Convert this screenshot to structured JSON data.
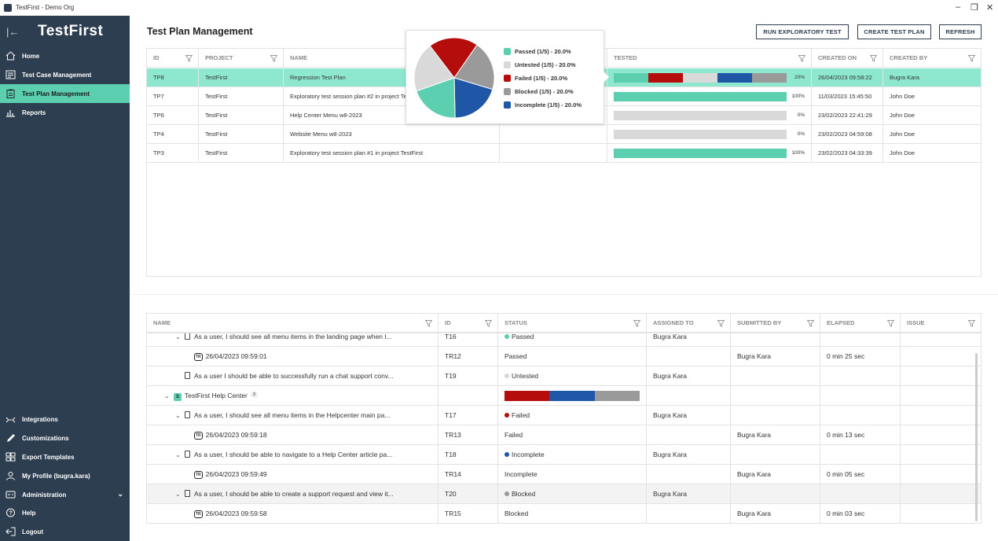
{
  "window": {
    "title": "TestFirst - Demo Org"
  },
  "sidebar": {
    "logo": "TestFirst",
    "items": [
      {
        "label": "Home",
        "icon": "home-icon"
      },
      {
        "label": "Test Case Management",
        "icon": "test-case-icon"
      },
      {
        "label": "Test Plan Management",
        "icon": "clipboard-icon"
      },
      {
        "label": "Reports",
        "icon": "chart-icon"
      }
    ],
    "bottom_items": [
      {
        "label": "Integrations",
        "icon": "integrations-icon"
      },
      {
        "label": "Customizations",
        "icon": "pen-icon"
      },
      {
        "label": "Export Templates",
        "icon": "template-icon"
      },
      {
        "label": "My Profile (bugra.kara)",
        "icon": "user-icon"
      },
      {
        "label": "Administration",
        "icon": "admin-icon"
      },
      {
        "label": "Help",
        "icon": "help-icon"
      },
      {
        "label": "Logout",
        "icon": "logout-icon"
      }
    ]
  },
  "page": {
    "title": "Test Plan Management"
  },
  "toolbar": {
    "run_exploratory": "RUN EXPLORATORY TEST",
    "create_plan": "CREATE TEST PLAN",
    "refresh": "REFRESH"
  },
  "plans_table": {
    "headers": [
      "ID",
      "PROJECT",
      "NAME",
      "",
      "TESTED",
      "CREATED ON",
      "CREATED BY"
    ],
    "rows": [
      {
        "id": "TP8",
        "project": "TestFirst",
        "name": "Regression Test Plan",
        "pct": "20%",
        "created_on": "26/04/2023 09:58:22",
        "created_by": "Bugra Kara",
        "selected": true
      },
      {
        "id": "TP7",
        "project": "TestFirst",
        "name": "Exploratory test session plan #2 in project TestFirst",
        "pct": "100%",
        "created_on": "11/03/2023 15:45:50",
        "created_by": "John Doe"
      },
      {
        "id": "TP6",
        "project": "TestFirst",
        "name": "Help Center Menu w8-2023",
        "pct": "0%",
        "created_on": "23/02/2023 22:41:29",
        "created_by": "John Doe"
      },
      {
        "id": "TP4",
        "project": "TestFirst",
        "name": "Website Menu w8-2023",
        "pct": "0%",
        "created_on": "23/02/2023 04:59:08",
        "created_by": "John Doe"
      },
      {
        "id": "TP3",
        "project": "TestFirst",
        "name": "Exploratory test session plan #1 in project TestFirst",
        "pct": "100%",
        "created_on": "23/02/2023 04:33:39",
        "created_by": "John Doe"
      }
    ]
  },
  "colors": {
    "passed": "#5ccfb1",
    "untested": "#d9d9d9",
    "failed": "#b50c0c",
    "blocked": "#9a9a9a",
    "incomplete": "#1f56a6",
    "sidebar": "#2d3e50",
    "active": "#5ccfb1"
  },
  "popup": {
    "legend": [
      {
        "label": "Passed (1/5) - 20.0%",
        "color": "#5ccfb1"
      },
      {
        "label": "Untested (1/5) - 20.0%",
        "color": "#d9d9d9"
      },
      {
        "label": "Failed (1/5) - 20.0%",
        "color": "#b50c0c"
      },
      {
        "label": "Blocked (1/5) - 20.0%",
        "color": "#9a9a9a"
      },
      {
        "label": "Incomplete (1/5) - 20.0%",
        "color": "#1f56a6"
      }
    ]
  },
  "runs_table": {
    "headers": [
      "NAME",
      "ID",
      "STATUS",
      "ASSIGNED TO",
      "SUBMITTED BY",
      "ELAPSED",
      "ISSUE"
    ],
    "rows": [
      {
        "kind": "case",
        "name": "As a user, I should see all menu items in the landing page when l...",
        "id": "T16",
        "status": "Passed",
        "status_color": "#5ccfb1",
        "assigned": "Bugra Kara",
        "submitted": "",
        "elapsed": ""
      },
      {
        "kind": "run",
        "name": "26/04/2023 09:59:01",
        "id": "TR12",
        "status": "Passed",
        "assigned": "",
        "submitted": "Bugra Kara",
        "elapsed": "0 min 25 sec"
      },
      {
        "kind": "case2",
        "name": "As a user I should be able to successfully run a chat support conv...",
        "id": "T19",
        "status": "Untested",
        "status_color": "#d9d9d9",
        "assigned": "Bugra Kara",
        "submitted": "",
        "elapsed": ""
      },
      {
        "kind": "suite",
        "name": "TestFirst Help Center",
        "badge": "S",
        "count": "3"
      },
      {
        "kind": "case",
        "name": "As a user, I should see all menu items in the Helpcenter main pa...",
        "id": "T17",
        "status": "Failed",
        "status_color": "#b50c0c",
        "assigned": "Bugra Kara",
        "submitted": "",
        "elapsed": ""
      },
      {
        "kind": "run",
        "name": "26/04/2023 09:59:18",
        "id": "TR13",
        "status": "Failed",
        "assigned": "",
        "submitted": "Bugra Kara",
        "elapsed": "0 min 13 sec"
      },
      {
        "kind": "case",
        "name": "As a user, I should be able to navigate to a Help Center article pa...",
        "id": "T18",
        "status": "Incomplete",
        "status_color": "#1f56a6",
        "assigned": "Bugra Kara",
        "submitted": "",
        "elapsed": ""
      },
      {
        "kind": "run",
        "name": "26/04/2023 09:59:49",
        "id": "TR14",
        "status": "Incomplete",
        "assigned": "",
        "submitted": "Bugra Kara",
        "elapsed": "0 min 05 sec"
      },
      {
        "kind": "case",
        "name": "As a user, I should be able to create a support request and view it...",
        "id": "T20",
        "status": "Blocked",
        "status_color": "#9a9a9a",
        "assigned": "Bugra Kara",
        "submitted": "",
        "elapsed": "",
        "hover": true
      },
      {
        "kind": "run",
        "name": "26/04/2023 09:59:58",
        "id": "TR15",
        "status": "Blocked",
        "assigned": "",
        "submitted": "Bugra Kara",
        "elapsed": "0 min 03 sec"
      }
    ]
  }
}
